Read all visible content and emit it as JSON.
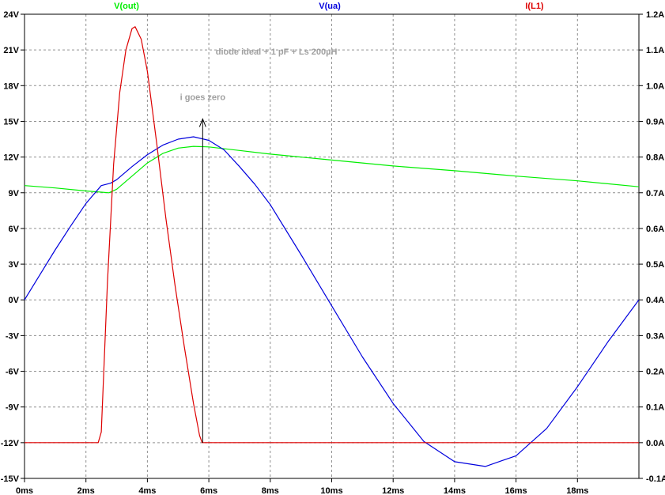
{
  "chart_data": {
    "type": "line",
    "x_unit": "ms",
    "x_range": [
      0,
      20
    ],
    "x_ticks": [
      "0ms",
      "2ms",
      "4ms",
      "6ms",
      "8ms",
      "10ms",
      "12ms",
      "14ms",
      "16ms",
      "18ms"
    ],
    "y_left_range": [
      -15,
      24
    ],
    "y_left_ticks": [
      "24V",
      "21V",
      "18V",
      "15V",
      "12V",
      "9V",
      "6V",
      "3V",
      "0V",
      "-3V",
      "-6V",
      "-9V",
      "-12V",
      "-15V"
    ],
    "y_right_range": [
      -0.1,
      1.2
    ],
    "y_right_ticks": [
      "1.2A",
      "1.1A",
      "1.0A",
      "0.9A",
      "0.8A",
      "0.7A",
      "0.6A",
      "0.5A",
      "0.4A",
      "0.3A",
      "0.2A",
      "0.1A",
      "0.0A",
      "-0.1A"
    ],
    "grid": true,
    "series": [
      {
        "name": "V(out)",
        "axis": "left",
        "color": "#00ee00",
        "points": [
          [
            0,
            9.6
          ],
          [
            1,
            9.4
          ],
          [
            2,
            9.15
          ],
          [
            2.5,
            9.05
          ],
          [
            2.75,
            9.0
          ],
          [
            3,
            9.3
          ],
          [
            3.5,
            10.4
          ],
          [
            4,
            11.5
          ],
          [
            4.5,
            12.3
          ],
          [
            5,
            12.75
          ],
          [
            5.5,
            12.9
          ],
          [
            6,
            12.85
          ],
          [
            7,
            12.55
          ],
          [
            8,
            12.25
          ],
          [
            10,
            11.75
          ],
          [
            12,
            11.25
          ],
          [
            14,
            10.85
          ],
          [
            16,
            10.4
          ],
          [
            18,
            10.0
          ],
          [
            20,
            9.5
          ]
        ]
      },
      {
        "name": "V(ua)",
        "axis": "left",
        "color": "#0000dd",
        "points": [
          [
            0,
            0
          ],
          [
            0.5,
            2.1
          ],
          [
            1,
            4.2
          ],
          [
            1.5,
            6.2
          ],
          [
            2,
            8.1
          ],
          [
            2.5,
            9.6
          ],
          [
            2.8,
            9.8
          ],
          [
            3,
            10.1
          ],
          [
            3.5,
            11.2
          ],
          [
            4,
            12.2
          ],
          [
            4.5,
            13.0
          ],
          [
            5,
            13.5
          ],
          [
            5.5,
            13.7
          ],
          [
            6,
            13.4
          ],
          [
            6.5,
            12.6
          ],
          [
            7,
            11.2
          ],
          [
            7.5,
            9.7
          ],
          [
            8,
            8.0
          ],
          [
            9,
            3.8
          ],
          [
            10,
            -0.5
          ],
          [
            11,
            -4.8
          ],
          [
            12,
            -8.7
          ],
          [
            13,
            -11.9
          ],
          [
            14,
            -13.6
          ],
          [
            15,
            -14.0
          ],
          [
            16,
            -13.1
          ],
          [
            17,
            -10.8
          ],
          [
            18,
            -7.3
          ],
          [
            19,
            -3.5
          ],
          [
            20,
            0
          ]
        ]
      },
      {
        "name": "I(L1)",
        "axis": "right",
        "color": "#dd0000",
        "points": [
          [
            0,
            0.0
          ],
          [
            2.4,
            0.0
          ],
          [
            2.5,
            0.03
          ],
          [
            2.7,
            0.45
          ],
          [
            2.9,
            0.78
          ],
          [
            3.1,
            0.98
          ],
          [
            3.3,
            1.1
          ],
          [
            3.5,
            1.16
          ],
          [
            3.6,
            1.165
          ],
          [
            3.8,
            1.13
          ],
          [
            4.0,
            1.04
          ],
          [
            4.3,
            0.84
          ],
          [
            4.6,
            0.63
          ],
          [
            4.9,
            0.44
          ],
          [
            5.2,
            0.27
          ],
          [
            5.5,
            0.11
          ],
          [
            5.7,
            0.02
          ],
          [
            5.78,
            0.0
          ],
          [
            5.9,
            0.0
          ],
          [
            20,
            0.0
          ]
        ]
      }
    ],
    "annotations": [
      {
        "text": "diode ideal + 1 pF + Ls 200µH",
        "x": 8.2,
        "y": 20.6
      },
      {
        "text": "i goes zero",
        "x": 5.8,
        "y": 16.8
      }
    ],
    "arrow": {
      "x": 5.8,
      "y_from": -12,
      "y_to": 15.2
    }
  }
}
